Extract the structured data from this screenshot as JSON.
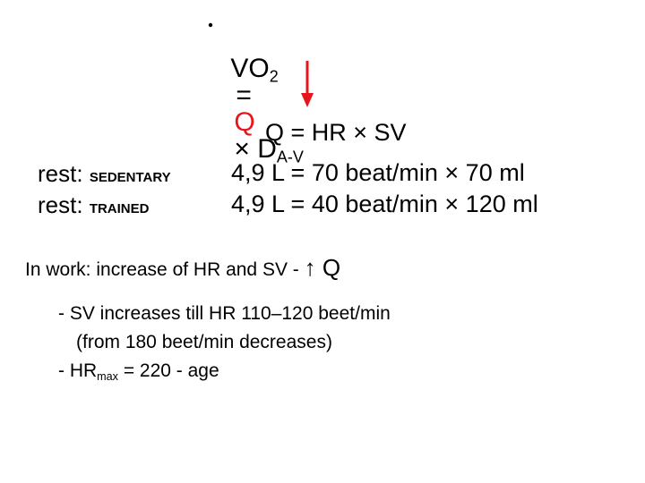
{
  "title": {
    "v": "V",
    "o": "O",
    "o_sub": "2",
    "equals": "=",
    "q": "Q",
    "times_d": "× D",
    "d_sub": "A-V"
  },
  "q_formula": "Q = HR × SV",
  "rows": [
    {
      "label": "rest:",
      "kind": "SEDENTARY",
      "formula": "4,9 L = 70 beat/min × 70 ml"
    },
    {
      "label": "rest:",
      "kind": "TRAINED",
      "formula": "4,9 L = 40 beat/min × 120 ml"
    }
  ],
  "work": {
    "text": "In work: increase of HR and SV -",
    "arrow_q": "↑ Q"
  },
  "notes": [
    "- SV increases till HR 110–120 beet/min",
    "(from 180 beet/min decreases)"
  ],
  "hrmax": {
    "prefix": "- HR",
    "sub": "max",
    "rest": "= 220 - age"
  }
}
